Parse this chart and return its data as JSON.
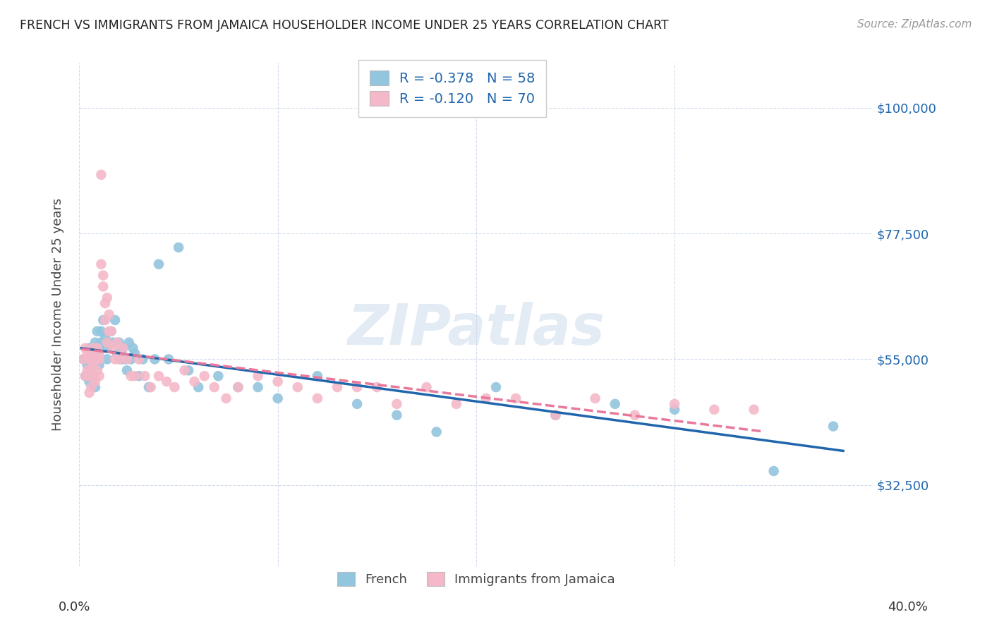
{
  "title": "FRENCH VS IMMIGRANTS FROM JAMAICA HOUSEHOLDER INCOME UNDER 25 YEARS CORRELATION CHART",
  "source": "Source: ZipAtlas.com",
  "ylabel": "Householder Income Under 25 years",
  "ytick_labels": [
    "$32,500",
    "$55,000",
    "$77,500",
    "$100,000"
  ],
  "ytick_values": [
    32500,
    55000,
    77500,
    100000
  ],
  "ylim": [
    18000,
    108000
  ],
  "xlim": [
    0.0,
    0.4
  ],
  "legend_label_blue": "French",
  "legend_label_pink": "Immigrants from Jamaica",
  "blue_color": "#92c5de",
  "pink_color": "#f4b8c8",
  "blue_line_color": "#2166ac",
  "pink_line_color": "#e8799a",
  "text_color": "#2166ac",
  "watermark": "ZIPatlas",
  "blue_scatter_x": [
    0.002,
    0.003,
    0.004,
    0.005,
    0.005,
    0.006,
    0.006,
    0.007,
    0.007,
    0.008,
    0.008,
    0.009,
    0.009,
    0.01,
    0.01,
    0.011,
    0.011,
    0.012,
    0.013,
    0.014,
    0.014,
    0.015,
    0.016,
    0.017,
    0.018,
    0.019,
    0.02,
    0.021,
    0.022,
    0.023,
    0.024,
    0.025,
    0.026,
    0.027,
    0.028,
    0.03,
    0.032,
    0.035,
    0.038,
    0.04,
    0.045,
    0.05,
    0.055,
    0.06,
    0.07,
    0.08,
    0.09,
    0.1,
    0.12,
    0.14,
    0.16,
    0.18,
    0.21,
    0.24,
    0.27,
    0.3,
    0.35,
    0.38
  ],
  "blue_scatter_y": [
    55000,
    52000,
    54000,
    51000,
    57000,
    53000,
    56000,
    55000,
    52000,
    58000,
    50000,
    56000,
    60000,
    57000,
    54000,
    60000,
    58000,
    62000,
    59000,
    55000,
    57000,
    58000,
    60000,
    58000,
    62000,
    56000,
    58000,
    55000,
    57000,
    55000,
    53000,
    58000,
    55000,
    57000,
    56000,
    52000,
    55000,
    50000,
    55000,
    72000,
    55000,
    75000,
    53000,
    50000,
    52000,
    50000,
    50000,
    48000,
    52000,
    47000,
    45000,
    42000,
    50000,
    45000,
    47000,
    46000,
    35000,
    43000
  ],
  "pink_scatter_x": [
    0.002,
    0.003,
    0.003,
    0.004,
    0.004,
    0.005,
    0.005,
    0.005,
    0.006,
    0.006,
    0.006,
    0.007,
    0.007,
    0.007,
    0.008,
    0.008,
    0.009,
    0.009,
    0.01,
    0.01,
    0.01,
    0.011,
    0.011,
    0.012,
    0.012,
    0.013,
    0.013,
    0.014,
    0.014,
    0.015,
    0.015,
    0.016,
    0.017,
    0.018,
    0.019,
    0.02,
    0.022,
    0.024,
    0.026,
    0.028,
    0.03,
    0.033,
    0.036,
    0.04,
    0.044,
    0.048,
    0.053,
    0.058,
    0.063,
    0.068,
    0.074,
    0.08,
    0.09,
    0.1,
    0.11,
    0.12,
    0.13,
    0.14,
    0.15,
    0.16,
    0.175,
    0.19,
    0.205,
    0.22,
    0.24,
    0.26,
    0.28,
    0.3,
    0.32,
    0.34
  ],
  "pink_scatter_y": [
    55000,
    52000,
    57000,
    53000,
    56000,
    52000,
    55000,
    49000,
    53000,
    56000,
    50000,
    54000,
    52000,
    57000,
    55000,
    51000,
    53000,
    57000,
    55000,
    52000,
    56000,
    88000,
    72000,
    70000,
    68000,
    65000,
    62000,
    66000,
    58000,
    60000,
    63000,
    60000,
    57000,
    55000,
    58000,
    55000,
    57000,
    55000,
    52000,
    52000,
    55000,
    52000,
    50000,
    52000,
    51000,
    50000,
    53000,
    51000,
    52000,
    50000,
    48000,
    50000,
    52000,
    51000,
    50000,
    48000,
    50000,
    50000,
    50000,
    47000,
    50000,
    47000,
    48000,
    48000,
    45000,
    48000,
    45000,
    47000,
    46000,
    46000
  ]
}
